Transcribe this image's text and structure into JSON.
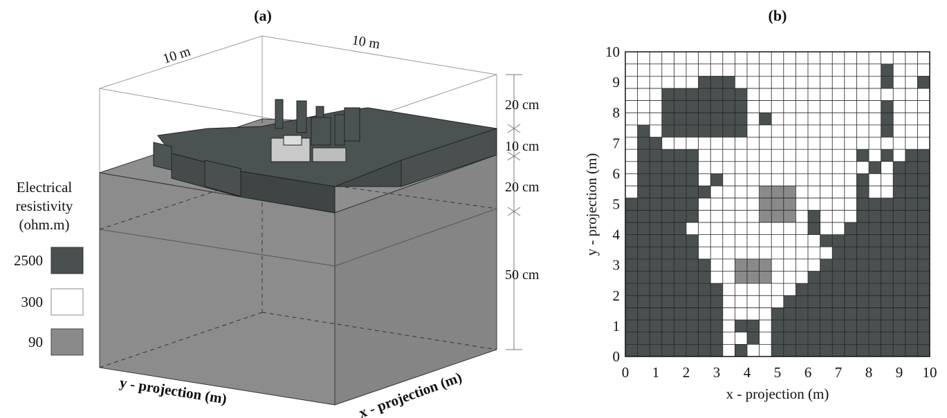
{
  "panel_a": {
    "label": "(a)",
    "dims": {
      "width": "10 m",
      "depth": "10 m"
    },
    "layers": [
      "20 cm",
      "10 cm",
      "20 cm",
      "50 cm"
    ],
    "y_axis_label": "y - projection (m)",
    "x_axis_label": "x - projection (m)",
    "legend": {
      "title_lines": [
        "Electrical",
        "resistivity",
        "(ohm.m)"
      ],
      "items": [
        {
          "value": "2500",
          "color": "#4a5050"
        },
        {
          "value": "300",
          "color": "#ffffff"
        },
        {
          "value": "90",
          "color": "#8a8a8a"
        }
      ]
    }
  },
  "panel_b": {
    "label": "(b)",
    "xlabel": "x - projection (m)",
    "ylabel": "y - projection (m)",
    "x_ticks": [
      "0",
      "1",
      "2",
      "3",
      "4",
      "5",
      "6",
      "7",
      "8",
      "9",
      "10"
    ],
    "y_ticks": [
      "0",
      "1",
      "2",
      "3",
      "4",
      "5",
      "6",
      "7",
      "8",
      "9",
      "10"
    ]
  },
  "chart_data": {
    "type": "heatmap",
    "title": "(b)",
    "xlabel": "x - projection (m)",
    "ylabel": "y - projection (m)",
    "xlim": [
      0,
      10
    ],
    "ylim": [
      0,
      10
    ],
    "cell_size_m": 0.4,
    "grid": true,
    "classes": [
      {
        "code": "D",
        "resistivity": 2500,
        "color": "#4a5050"
      },
      {
        "code": ".",
        "resistivity": 300,
        "color": "#ffffff"
      },
      {
        "code": "L",
        "resistivity": 90,
        "color": "#8a8a8a"
      }
    ],
    "rows_top_to_bottom": [
      ".........................",
      ".....................D...",
      "......DDD............D..D",
      "...DDDDDDD...............",
      "...DDDDDDD...........D...",
      "...DDDDDDD.D.........D...",
      ".D.DDDDDDD...........D...",
      ".DD......................",
      ".DDDDD.............D.D.DD",
      ".DDDDD..............D.DDD",
      ".DDDDD.D...........D..DDD",
      ".DDDDDD....LLL.....D..DDD",
      "DDDDDD.....LLL.....DDDDDD",
      "DDDDDD.....LLL.D...DDDDDD",
      "DDDDD..........D..DDDDDDD",
      "DDDDDD..........DDDDDDDDD",
      "DDDDDD...........DDDDDDDD",
      "DDDDDDD..LLL....DDDDDDDDD",
      "DDDDDDD..LLL...DDDDDDDDDD",
      "DDDDDDDD......DDDDDDDDDDD",
      "DDDDDDDD.....DDDDDDDDDDDD",
      "DDDDDDDD....DDDDDDDDDDDDD",
      "DDDDDDDD.DD.DDDDDDDDDDDDD",
      "DDDDDDDD..D.DDDDDDDDDDDDD",
      "DDDDDDDD.D..DDDDDDDDDDDDD"
    ]
  }
}
